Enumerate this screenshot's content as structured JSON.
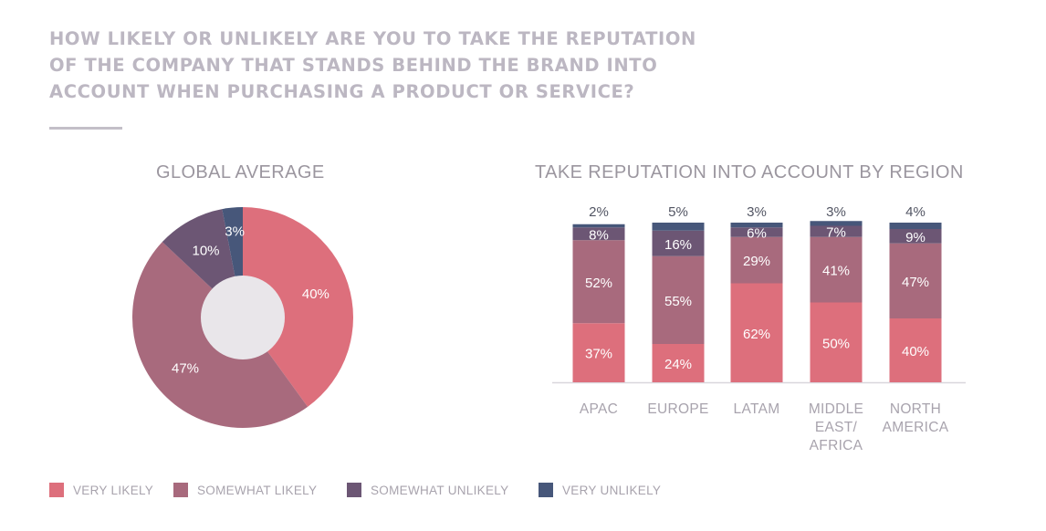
{
  "title_lines": [
    "HOW LIKELY OR UNLIKELY ARE YOU TO TAKE THE REPUTATION",
    "OF THE COMPANY THAT STANDS BEHIND THE BRAND INTO",
    "ACCOUNT WHEN PURCHASING A PRODUCT OR SERVICE?"
  ],
  "colors": {
    "very_likely": "#dd6f7c",
    "somewhat_likely": "#a86a7d",
    "somewhat_unlikely": "#6c5674",
    "very_unlikely": "#47577a",
    "pie_center": "#e9e6ea"
  },
  "legend": [
    {
      "label": "VERY LIKELY",
      "color": "#dd6f7c"
    },
    {
      "label": "SOMEWHAT LIKELY",
      "color": "#a86a7d"
    },
    {
      "label": "SOMEWHAT UNLIKELY",
      "color": "#6c5674"
    },
    {
      "label": "VERY UNLIKELY",
      "color": "#47577a"
    }
  ],
  "chart_data": [
    {
      "type": "pie",
      "title": "GLOBAL AVERAGE",
      "donut": true,
      "slices": [
        {
          "label": "VERY LIKELY",
          "value": 40,
          "display": "40%",
          "color": "#dd6f7c"
        },
        {
          "label": "SOMEWHAT LIKELY",
          "value": 47,
          "display": "47%",
          "color": "#a86a7d"
        },
        {
          "label": "SOMEWHAT UNLIKELY",
          "value": 10,
          "display": "10%",
          "color": "#6c5674"
        },
        {
          "label": "VERY UNLIKELY",
          "value": 3,
          "display": "3%",
          "color": "#47577a"
        }
      ]
    },
    {
      "type": "bar",
      "stacked": true,
      "title": "TAKE REPUTATION INTO ACCOUNT BY REGION",
      "categories": [
        [
          "APAC"
        ],
        [
          "EUROPE"
        ],
        [
          "LATAM"
        ],
        [
          "MIDDLE",
          "EAST/",
          "AFRICA"
        ],
        [
          "NORTH",
          "AMERICA"
        ]
      ],
      "ylim": [
        0,
        100
      ],
      "series": [
        {
          "name": "VERY LIKELY",
          "color": "#dd6f7c",
          "values": [
            37,
            24,
            62,
            50,
            40
          ]
        },
        {
          "name": "SOMEWHAT LIKELY",
          "color": "#a86a7d",
          "values": [
            52,
            55,
            29,
            41,
            47
          ]
        },
        {
          "name": "SOMEWHAT UNLIKELY",
          "color": "#6c5674",
          "values": [
            8,
            16,
            6,
            7,
            9
          ]
        },
        {
          "name": "VERY UNLIKELY",
          "color": "#47577a",
          "values": [
            2,
            5,
            3,
            3,
            4
          ]
        }
      ]
    }
  ]
}
